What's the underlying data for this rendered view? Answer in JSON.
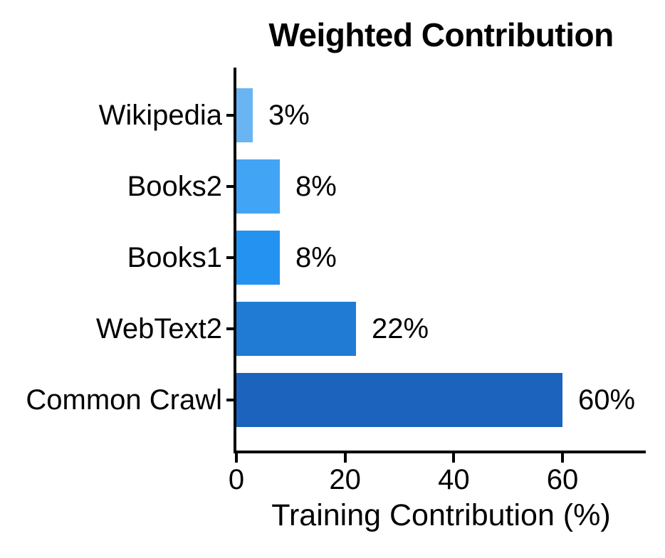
{
  "chart_data": {
    "type": "bar",
    "orientation": "horizontal",
    "title": "Weighted Contribution",
    "xlabel": "Training Contribution (%)",
    "ylabel": "",
    "categories": [
      "Wikipedia",
      "Books2",
      "Books1",
      "WebText2",
      "Common Crawl"
    ],
    "values": [
      3,
      8,
      8,
      22,
      60
    ],
    "value_labels": [
      "3%",
      "8%",
      "8%",
      "22%",
      "60%"
    ],
    "bar_colors": [
      "#69B5F3",
      "#41A4F5",
      "#2492F0",
      "#1F7BD4",
      "#1B63BC"
    ],
    "x_ticks": [
      0,
      20,
      40,
      60
    ],
    "xlim": [
      0,
      75.4
    ],
    "grid": false,
    "legend": "none",
    "axis_color": "#000000",
    "text_color": "#000000",
    "background_color": "#FFFFFF"
  }
}
